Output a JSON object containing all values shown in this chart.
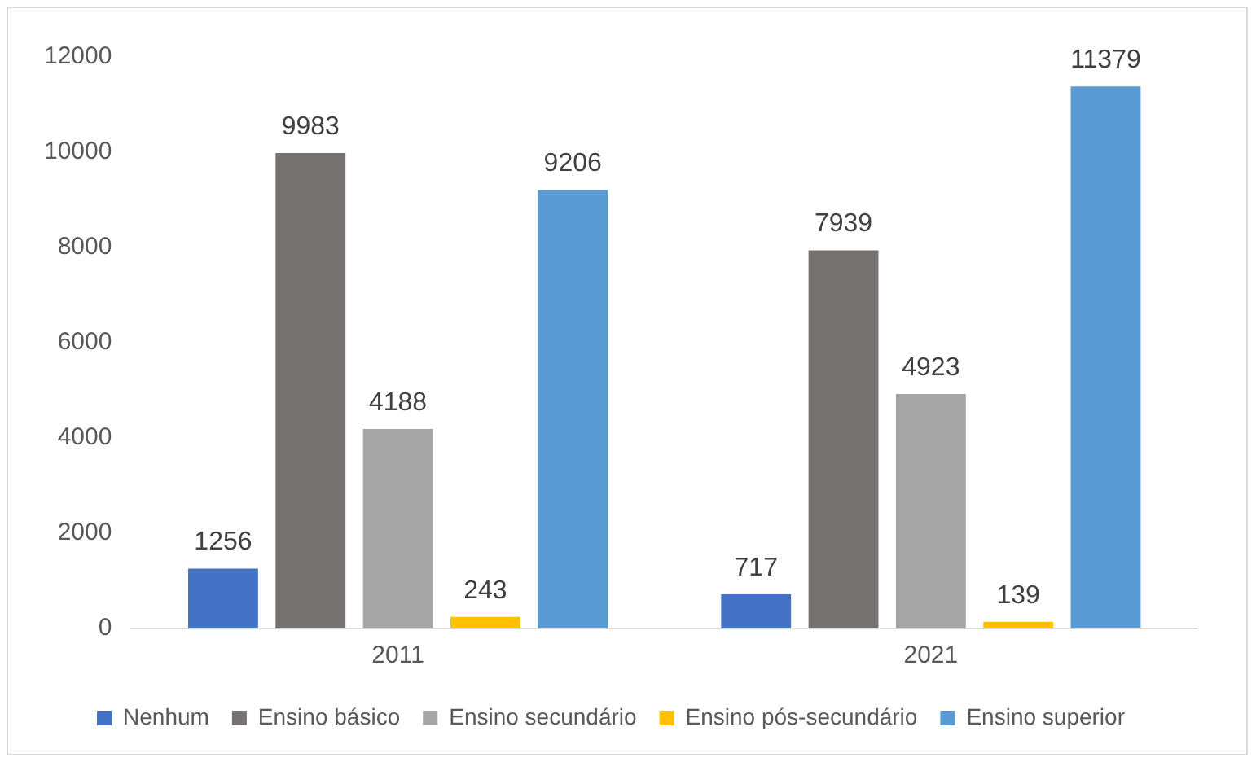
{
  "chart_data": {
    "type": "bar",
    "categories": [
      "2011",
      "2021"
    ],
    "series": [
      {
        "name": "Nenhum",
        "color": "#4472c4",
        "values": [
          1256,
          717
        ]
      },
      {
        "name": "Ensino básico",
        "color": "#767171",
        "values": [
          9983,
          7939
        ]
      },
      {
        "name": "Ensino secundário",
        "color": "#a5a5a5",
        "values": [
          4188,
          4923
        ]
      },
      {
        "name": "Ensino pós-secundário",
        "color": "#ffc000",
        "values": [
          243,
          139
        ]
      },
      {
        "name": "Ensino superior",
        "color": "#5b9bd5",
        "values": [
          9206,
          11379
        ]
      }
    ],
    "ylim": [
      0,
      12000
    ],
    "yticks": [
      0,
      2000,
      4000,
      6000,
      8000,
      10000,
      12000
    ],
    "grid": false,
    "legend": "bottom",
    "data_labels": true
  }
}
